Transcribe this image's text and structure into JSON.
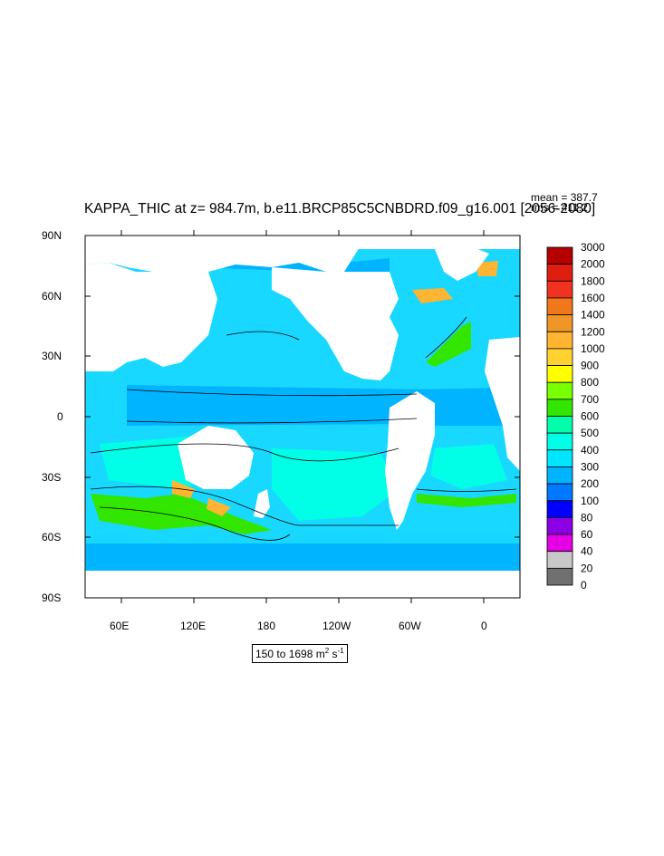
{
  "title": "KAPPA_THIC at z= 984.7m, b.e11.BRCP85C5CNBDRD.f09_g16.001 [2056-2080]",
  "stats": {
    "mean": "mean = 387.7",
    "rms": "rms = 411.2"
  },
  "units": {
    "range_text": "150 to 1698 m",
    "exp1": "2",
    "s_text": " s",
    "exp2": "-1"
  },
  "axes": {
    "y_ticks": [
      "90N",
      "60N",
      "30N",
      "0",
      "30S",
      "60S",
      "90S"
    ],
    "x_ticks": [
      "60E",
      "120E",
      "180",
      "120W",
      "60W",
      "0"
    ]
  },
  "colorbar": {
    "labels": [
      "3000",
      "2000",
      "1800",
      "1600",
      "1400",
      "1200",
      "1000",
      "900",
      "800",
      "700",
      "600",
      "500",
      "400",
      "300",
      "200",
      "100",
      "80",
      "60",
      "40",
      "20",
      "0"
    ],
    "colors": [
      "#b40000",
      "#e01e10",
      "#f0321e",
      "#f07818",
      "#f09628",
      "#ffb432",
      "#ffd232",
      "#ffff00",
      "#78ff00",
      "#32e600",
      "#00ffaa",
      "#00ffe6",
      "#00e6ff",
      "#00b4ff",
      "#0078ff",
      "#0000ff",
      "#8c00e6",
      "#e600e6",
      "#c8c8c8",
      "#707070"
    ]
  },
  "map": {
    "fill_ocean": "#19d8ff",
    "fill_land": "#ffffff",
    "fill_low": "#00b4ff",
    "fill_mid": "#00ffe6",
    "fill_high": "#32e600",
    "fill_peak": "#ffb432"
  }
}
